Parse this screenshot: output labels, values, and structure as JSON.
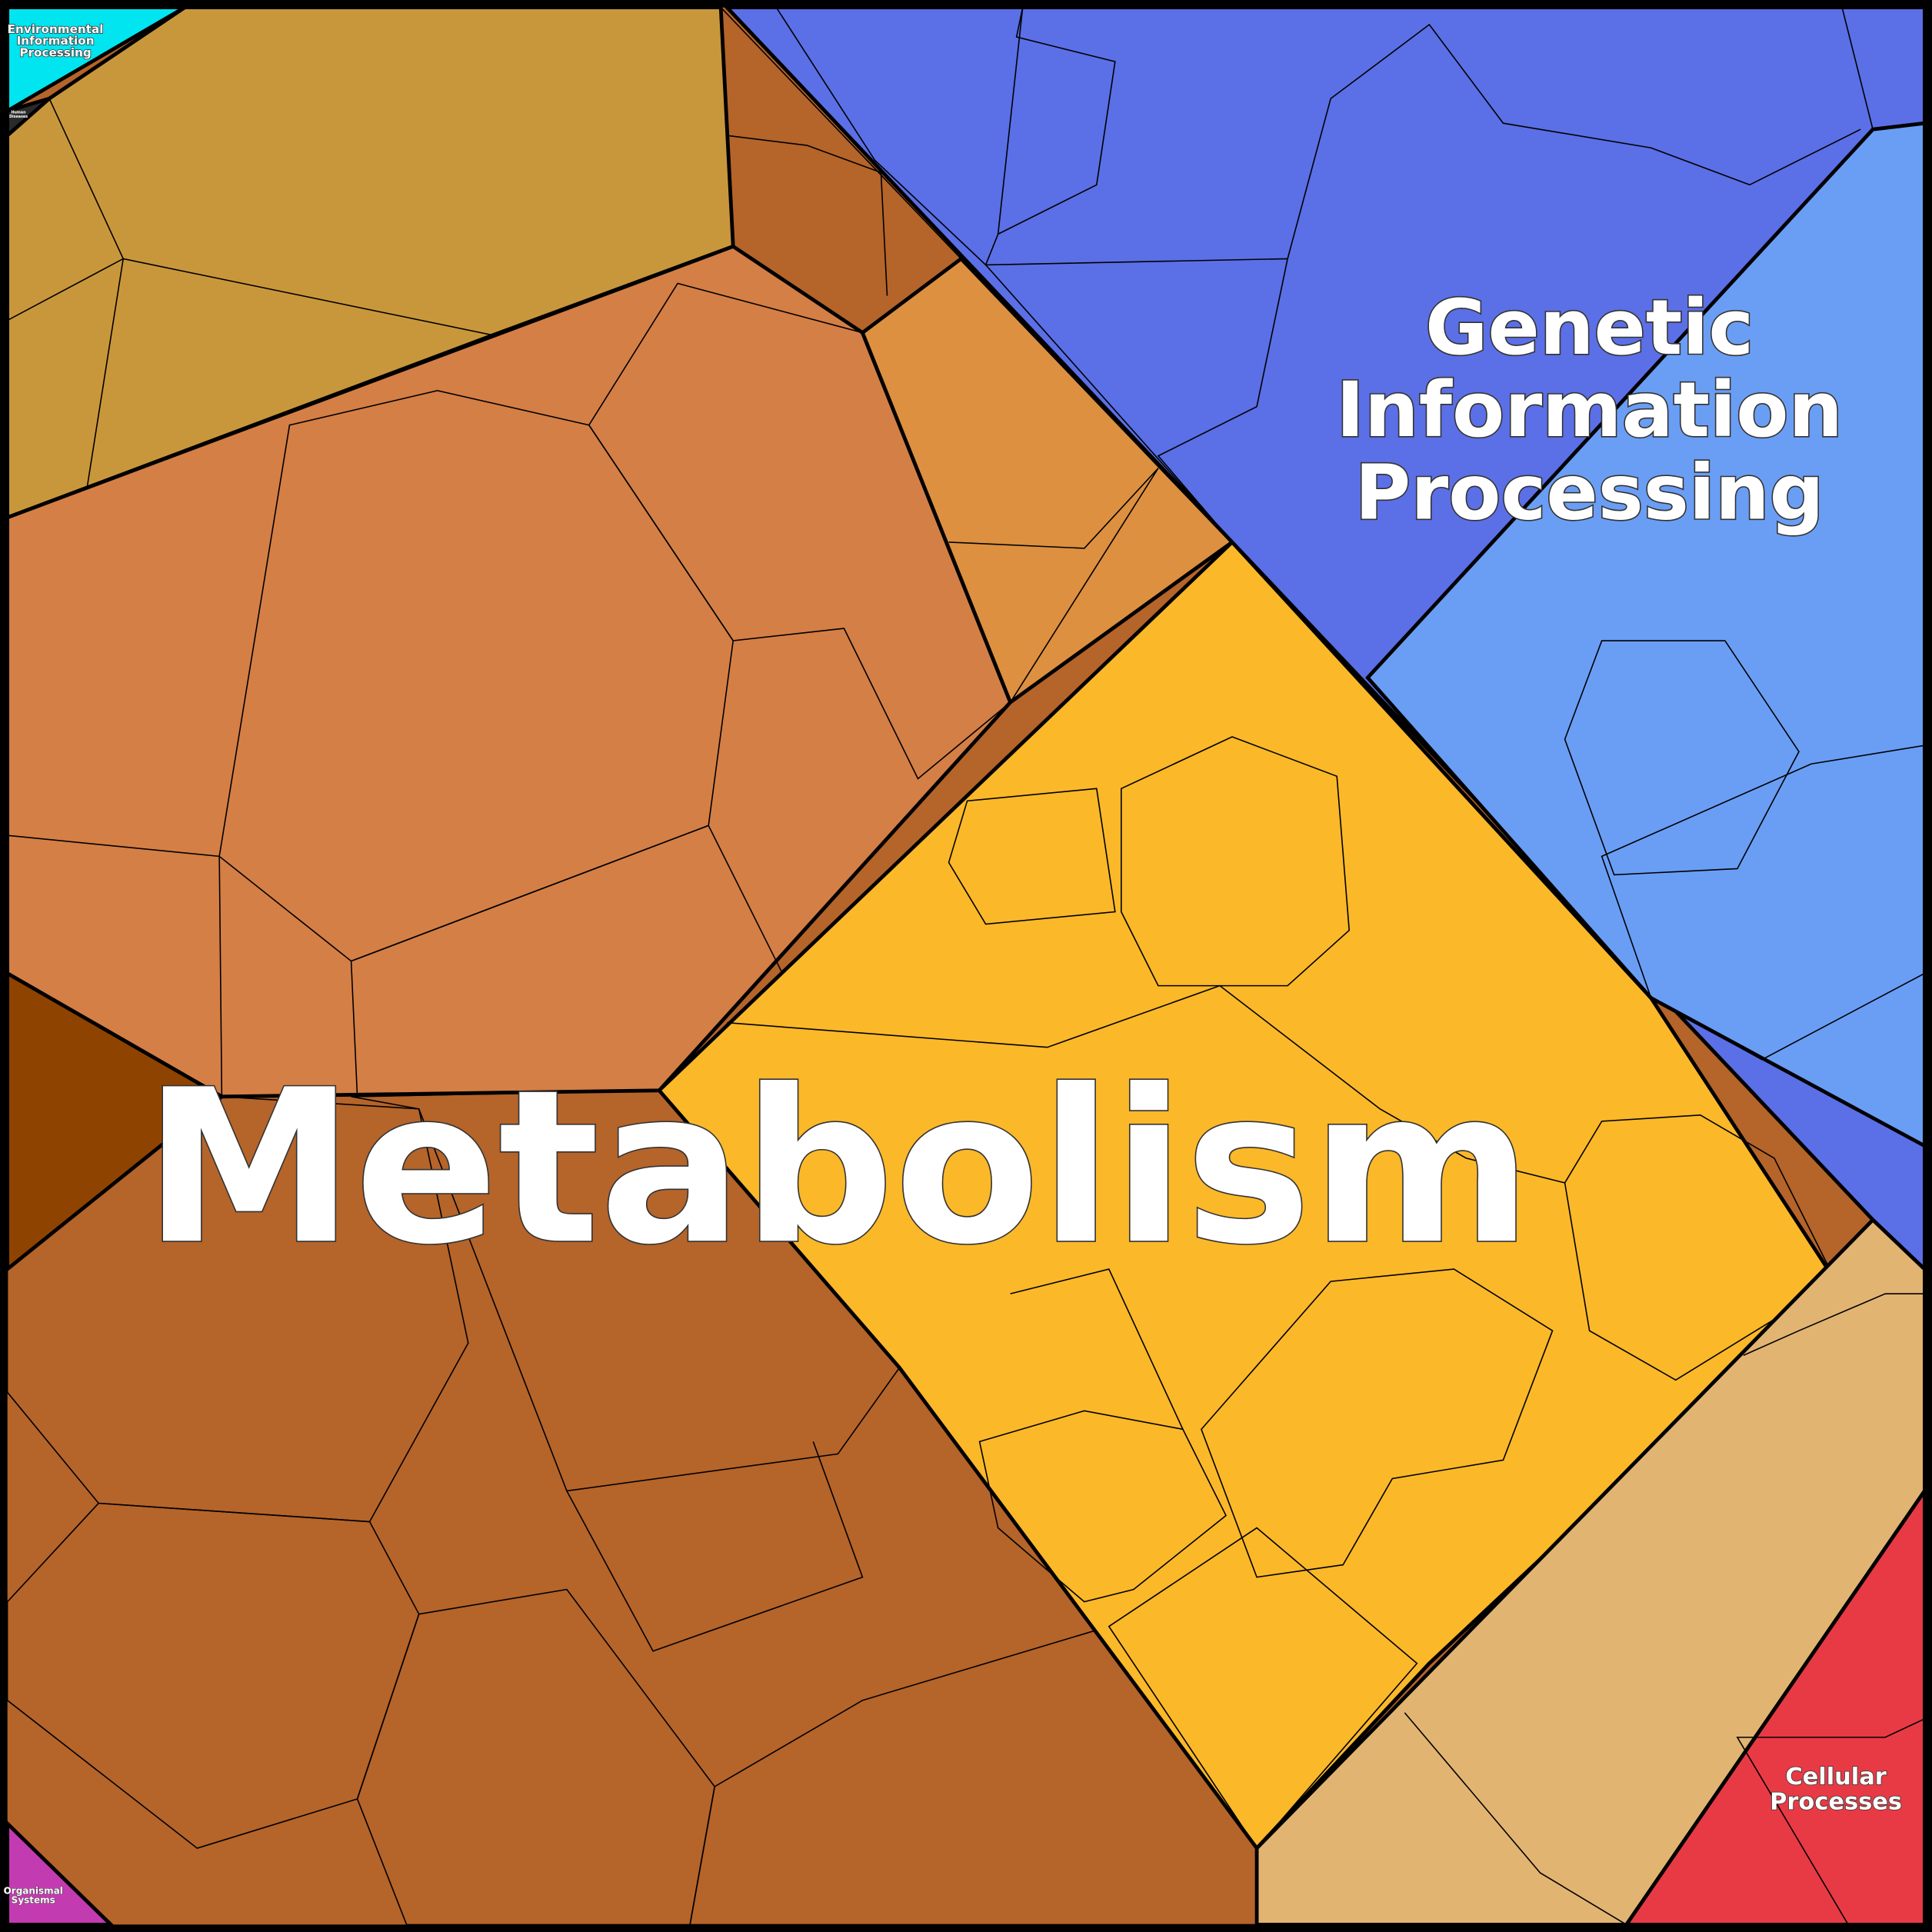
{
  "regions": {
    "environmental": {
      "lines": [
        "Environmental",
        "Information",
        "Processing"
      ]
    },
    "human_diseases": {
      "lines": [
        "Human",
        "Diseases"
      ]
    },
    "genetic": {
      "lines": [
        "Genetic",
        "Information",
        "Processing"
      ]
    },
    "metabolism": {
      "lines": [
        "Metabolism"
      ]
    },
    "cellular": {
      "lines": [
        "Cellular",
        "Processes"
      ]
    },
    "organismal": {
      "lines": [
        "Organismal",
        "Systems"
      ]
    }
  }
}
